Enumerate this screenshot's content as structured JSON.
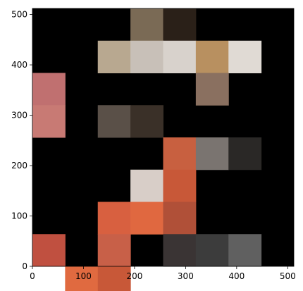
{
  "chart_data": {
    "type": "heatmap",
    "title": "",
    "xlabel": "",
    "ylabel": "",
    "xlim": [
      0,
      512
    ],
    "ylim": [
      0,
      512
    ],
    "grid": false,
    "image": {
      "size": [
        512,
        512
      ],
      "tile_size": 64,
      "background": "#000000",
      "tiles": [
        {
          "col": 3,
          "row": 0,
          "fill": "#7a6a55"
        },
        {
          "col": 4,
          "row": 0,
          "fill": "#2a2018"
        },
        {
          "col": 2,
          "row": 1,
          "fill": "#b8a890"
        },
        {
          "col": 3,
          "row": 1,
          "fill": "#c8c0b8"
        },
        {
          "col": 4,
          "row": 1,
          "fill": "#d8d2cc"
        },
        {
          "col": 5,
          "row": 1,
          "fill": "#b89060"
        },
        {
          "col": 6,
          "row": 1,
          "fill": "#e0dad4"
        },
        {
          "col": 0,
          "row": 2,
          "fill": "#c07070"
        },
        {
          "col": 5,
          "row": 2,
          "fill": "#8a7060"
        },
        {
          "col": 0,
          "row": 3,
          "fill": "#c87a74"
        },
        {
          "col": 2,
          "row": 3,
          "fill": "#5a5048"
        },
        {
          "col": 3,
          "row": 3,
          "fill": "#3a3028"
        },
        {
          "col": 4,
          "row": 4,
          "fill": "#c86040"
        },
        {
          "col": 5,
          "row": 4,
          "fill": "#7a7470"
        },
        {
          "col": 6,
          "row": 4,
          "fill": "#2a2826"
        },
        {
          "col": 3,
          "row": 5,
          "fill": "#d8cec8"
        },
        {
          "col": 4,
          "row": 5,
          "fill": "#c85838"
        },
        {
          "col": 2,
          "row": 6,
          "fill": "#d86040"
        },
        {
          "col": 3,
          "row": 6,
          "fill": "#e06840"
        },
        {
          "col": 4,
          "row": 6,
          "fill": "#b05038"
        },
        {
          "col": 0,
          "row": 7,
          "fill": "#c05040"
        },
        {
          "col": 2,
          "row": 7,
          "fill": "#c86048"
        },
        {
          "col": 4,
          "row": 7,
          "fill": "#3a3434"
        },
        {
          "col": 5,
          "row": 7,
          "fill": "#3c3c3c"
        },
        {
          "col": 6,
          "row": 7,
          "fill": "#606060"
        },
        {
          "col": 1,
          "row": 8,
          "fill": "#e06a40"
        },
        {
          "col": 2,
          "row": 8,
          "fill": "#c85838"
        }
      ]
    },
    "x_ticks": [
      {
        "value": 0,
        "label": "0"
      },
      {
        "value": 100,
        "label": "100"
      },
      {
        "value": 200,
        "label": "200"
      },
      {
        "value": 300,
        "label": "300"
      },
      {
        "value": 400,
        "label": "400"
      },
      {
        "value": 500,
        "label": "500"
      }
    ],
    "y_ticks": [
      {
        "value": 0,
        "label": "0"
      },
      {
        "value": 100,
        "label": "100"
      },
      {
        "value": 200,
        "label": "200"
      },
      {
        "value": 300,
        "label": "300"
      },
      {
        "value": 400,
        "label": "400"
      },
      {
        "value": 500,
        "label": "500"
      }
    ]
  }
}
